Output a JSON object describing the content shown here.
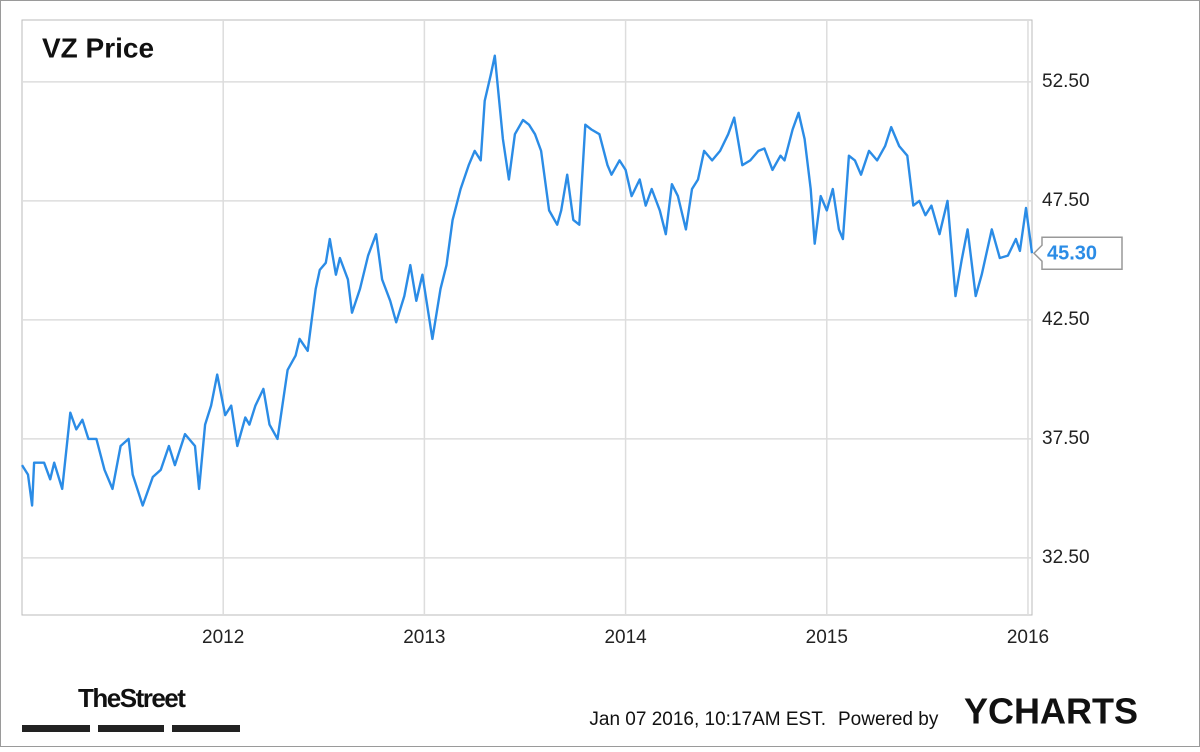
{
  "chart_data": {
    "type": "line",
    "title": "VZ Price",
    "color": "#2b8ce6",
    "grid": true,
    "xlim": [
      2011.0,
      2016.02
    ],
    "xticks": [
      2012,
      2013,
      2014,
      2015,
      2016
    ],
    "ylim": [
      30.1,
      55.1
    ],
    "yticks": [
      {
        "value": 32.5,
        "label": "32.50"
      },
      {
        "value": 37.5,
        "label": "37.50"
      },
      {
        "value": 42.5,
        "label": "42.50"
      },
      {
        "value": 47.5,
        "label": "47.50"
      },
      {
        "value": 52.5,
        "label": "52.50"
      }
    ],
    "last_value": {
      "value": 45.3,
      "label": "45.30"
    },
    "x": [
      2011.0,
      2011.03,
      2011.05,
      2011.06,
      2011.11,
      2011.14,
      2011.16,
      2011.2,
      2011.24,
      2011.27,
      2011.3,
      2011.33,
      2011.37,
      2011.41,
      2011.45,
      2011.49,
      2011.53,
      2011.55,
      2011.6,
      2011.65,
      2011.69,
      2011.73,
      2011.76,
      2011.81,
      2011.86,
      2011.88,
      2011.91,
      2011.94,
      2011.97,
      2012.01,
      2012.04,
      2012.07,
      2012.11,
      2012.13,
      2012.16,
      2012.2,
      2012.23,
      2012.27,
      2012.32,
      2012.36,
      2012.38,
      2012.42,
      2012.46,
      2012.48,
      2012.51,
      2012.53,
      2012.56,
      2012.58,
      2012.62,
      2012.64,
      2012.68,
      2012.72,
      2012.76,
      2012.79,
      2012.83,
      2012.86,
      2012.9,
      2012.93,
      2012.96,
      2012.99,
      2013.04,
      2013.08,
      2013.11,
      2013.14,
      2013.18,
      2013.22,
      2013.25,
      2013.28,
      2013.3,
      2013.33,
      2013.35,
      2013.39,
      2013.42,
      2013.45,
      2013.49,
      2013.52,
      2013.55,
      2013.58,
      2013.62,
      2013.66,
      2013.68,
      2013.71,
      2013.74,
      2013.77,
      2013.8,
      2013.83,
      2013.87,
      2013.91,
      2013.93,
      2013.97,
      2014.0,
      2014.03,
      2014.07,
      2014.1,
      2014.13,
      2014.17,
      2014.2,
      2014.23,
      2014.26,
      2014.3,
      2014.33,
      2014.36,
      2014.39,
      2014.43,
      2014.47,
      2014.51,
      2014.54,
      2014.58,
      2014.62,
      2014.66,
      2014.69,
      2014.73,
      2014.77,
      2014.79,
      2014.83,
      2014.86,
      2014.89,
      2014.92,
      2014.94,
      2014.97,
      2015.0,
      2015.03,
      2015.06,
      2015.08,
      2015.11,
      2015.14,
      2015.17,
      2015.21,
      2015.25,
      2015.29,
      2015.32,
      2015.36,
      2015.4,
      2015.43,
      2015.46,
      2015.49,
      2015.52,
      2015.56,
      2015.6,
      2015.64,
      2015.67,
      2015.7,
      2015.74,
      2015.77,
      2015.82,
      2015.86,
      2015.9,
      2015.94,
      2015.96,
      2015.99,
      2016.02
    ],
    "values": [
      36.4,
      36.0,
      34.7,
      36.5,
      36.5,
      35.8,
      36.5,
      35.4,
      38.6,
      37.9,
      38.3,
      37.5,
      37.5,
      36.2,
      35.4,
      37.2,
      37.5,
      36.0,
      34.7,
      35.9,
      36.2,
      37.2,
      36.4,
      37.7,
      37.2,
      35.4,
      38.1,
      38.9,
      40.2,
      38.5,
      38.9,
      37.2,
      38.4,
      38.1,
      38.9,
      39.6,
      38.1,
      37.5,
      40.4,
      41.0,
      41.7,
      41.2,
      43.8,
      44.6,
      44.9,
      45.9,
      44.4,
      45.1,
      44.2,
      42.8,
      43.8,
      45.2,
      46.1,
      44.2,
      43.3,
      42.4,
      43.5,
      44.8,
      43.3,
      44.4,
      41.7,
      43.8,
      44.8,
      46.7,
      48.0,
      49.0,
      49.6,
      49.2,
      51.7,
      52.8,
      53.6,
      50.1,
      48.4,
      50.3,
      50.9,
      50.7,
      50.3,
      49.6,
      47.1,
      46.5,
      47.1,
      48.6,
      46.7,
      46.5,
      50.7,
      50.5,
      50.3,
      49.0,
      48.6,
      49.2,
      48.8,
      47.7,
      48.4,
      47.3,
      48.0,
      47.1,
      46.1,
      48.2,
      47.7,
      46.3,
      48.0,
      48.4,
      49.6,
      49.2,
      49.6,
      50.3,
      51.0,
      49.0,
      49.2,
      49.6,
      49.7,
      48.8,
      49.4,
      49.2,
      50.5,
      51.2,
      50.1,
      48.0,
      45.7,
      47.7,
      47.1,
      48.0,
      46.3,
      45.9,
      49.4,
      49.2,
      48.6,
      49.6,
      49.2,
      49.8,
      50.6,
      49.8,
      49.4,
      47.3,
      47.5,
      46.9,
      47.3,
      46.1,
      47.5,
      43.5,
      45.0,
      46.3,
      43.5,
      44.4,
      46.3,
      45.1,
      45.2,
      45.9,
      45.4,
      47.2,
      45.3
    ],
    "source": "TheStreet",
    "timestamp": "Jan 07 2016, 10:17AM EST.",
    "credit": "Powered by",
    "brand": "YCHARTS"
  }
}
